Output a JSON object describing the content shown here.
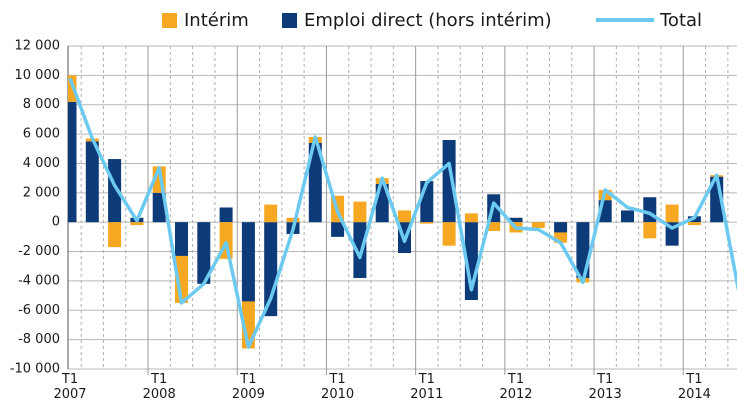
{
  "chart_data": {
    "type": "bar_line",
    "categories": [
      "T1\n2007",
      null,
      null,
      null,
      "T1\n2008",
      null,
      null,
      null,
      "T1\n2009",
      null,
      null,
      null,
      "T1\n2010",
      null,
      null,
      null,
      "T1\n2011",
      null,
      null,
      null,
      "T1\n2012",
      null,
      null,
      null,
      "T1\n2013",
      null,
      null,
      null,
      "T1\n2014",
      null,
      null
    ],
    "series": [
      {
        "name": "Intérim",
        "color": "#f7a823",
        "kind": "bar",
        "values": [
          1800,
          200,
          -1700,
          -200,
          1800,
          -3200,
          0,
          -2500,
          -3200,
          1200,
          300,
          400,
          1800,
          1400,
          400,
          800,
          -100,
          -1600,
          600,
          -600,
          -700,
          -400,
          -700,
          -300,
          700,
          0,
          -1100,
          1200,
          -200,
          100,
          null
        ]
      },
      {
        "name": "Emploi direct (hors intérim)",
        "color": "#0d3a78",
        "kind": "bar",
        "values": [
          8200,
          5500,
          4300,
          300,
          2000,
          -2300,
          -4200,
          1000,
          -5400,
          -6400,
          -800,
          5400,
          -1000,
          -3800,
          2600,
          -2100,
          2800,
          5600,
          -5300,
          1900,
          300,
          0,
          -700,
          -3800,
          1500,
          800,
          1700,
          -1600,
          400,
          3100,
          null
        ]
      },
      {
        "name": "Total",
        "color": "#6ccaf0",
        "kind": "line",
        "values": [
          9800,
          5700,
          2500,
          100,
          3700,
          -5500,
          -4200,
          -1400,
          -8500,
          -5200,
          -500,
          5800,
          700,
          -2400,
          3000,
          -1300,
          2700,
          4000,
          -4600,
          1300,
          -400,
          -500,
          -1400,
          -4100,
          2200,
          1000,
          600,
          -400,
          300,
          3200,
          -4800
        ]
      }
    ],
    "ylim": [
      -10000,
      12000
    ],
    "yticks": [
      {
        "value": -10000,
        "label": "-10 000"
      },
      {
        "value": -8000,
        "label": "-8 000"
      },
      {
        "value": -6000,
        "label": "-6 000"
      },
      {
        "value": -4000,
        "label": "-4 000"
      },
      {
        "value": -2000,
        "label": "-2 000"
      },
      0,
      {
        "value": 2000,
        "label": "2 000"
      },
      {
        "value": 4000,
        "label": "4 000"
      },
      {
        "value": 6000,
        "label": "6 000"
      },
      {
        "value": 8000,
        "label": "8 000"
      },
      {
        "value": 10000,
        "label": "10 000"
      },
      {
        "value": 12000,
        "label": "12 000"
      }
    ],
    "grid": true
  }
}
